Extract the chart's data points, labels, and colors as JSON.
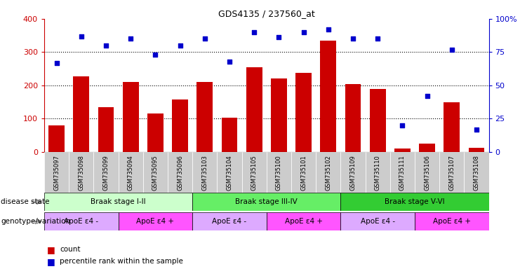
{
  "title": "GDS4135 / 237560_at",
  "samples": [
    "GSM735097",
    "GSM735098",
    "GSM735099",
    "GSM735094",
    "GSM735095",
    "GSM735096",
    "GSM735103",
    "GSM735104",
    "GSM735105",
    "GSM735100",
    "GSM735101",
    "GSM735102",
    "GSM735109",
    "GSM735110",
    "GSM735111",
    "GSM735106",
    "GSM735107",
    "GSM735108"
  ],
  "counts": [
    80,
    228,
    135,
    210,
    115,
    158,
    210,
    102,
    255,
    220,
    237,
    335,
    205,
    190,
    10,
    25,
    150,
    12
  ],
  "percentiles": [
    67,
    87,
    80,
    85,
    73,
    80,
    85,
    68,
    90,
    86,
    90,
    92,
    85,
    85,
    20,
    42,
    77,
    17
  ],
  "bar_color": "#cc0000",
  "dot_color": "#0000cc",
  "left_yaxis_color": "#cc0000",
  "right_yaxis_color": "#0000cc",
  "ylim_left": [
    0,
    400
  ],
  "ylim_right": [
    0,
    100
  ],
  "yticks_left": [
    0,
    100,
    200,
    300,
    400
  ],
  "yticks_right": [
    0,
    25,
    50,
    75,
    100
  ],
  "ytick_labels_right": [
    "0",
    "25",
    "50",
    "75",
    "100%"
  ],
  "grid_lines": [
    100,
    200,
    300
  ],
  "disease_groups": [
    {
      "label": "Braak stage I-II",
      "start": 0,
      "end": 6,
      "color": "#ccffcc"
    },
    {
      "label": "Braak stage III-IV",
      "start": 6,
      "end": 12,
      "color": "#66ee66"
    },
    {
      "label": "Braak stage V-VI",
      "start": 12,
      "end": 18,
      "color": "#33cc33"
    }
  ],
  "genotype_groups": [
    {
      "label": "ApoE ε4 -",
      "start": 0,
      "end": 3,
      "color": "#ddaaff"
    },
    {
      "label": "ApoE ε4 +",
      "start": 3,
      "end": 6,
      "color": "#ff55ff"
    },
    {
      "label": "ApoE ε4 -",
      "start": 6,
      "end": 9,
      "color": "#ddaaff"
    },
    {
      "label": "ApoE ε4 +",
      "start": 9,
      "end": 12,
      "color": "#ff55ff"
    },
    {
      "label": "ApoE ε4 -",
      "start": 12,
      "end": 15,
      "color": "#ddaaff"
    },
    {
      "label": "ApoE ε4 +",
      "start": 15,
      "end": 18,
      "color": "#ff55ff"
    }
  ],
  "disease_label": "disease state",
  "genotype_label": "genotype/variation",
  "legend_count": "count",
  "legend_pct": "percentile rank within the sample",
  "background_color": "#ffffff",
  "xtick_bg": "#cccccc"
}
